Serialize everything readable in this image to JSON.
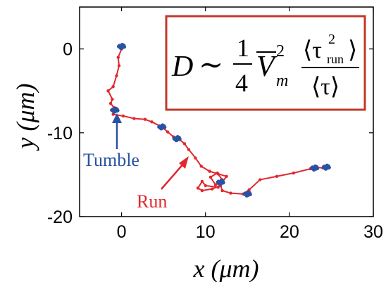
{
  "chart_data": {
    "type": "line",
    "xlabel": "x (μm)",
    "ylabel": "y (μm)",
    "xlim": [
      -5,
      30
    ],
    "ylim": [
      -20,
      5
    ],
    "xticks": [
      0,
      10,
      20,
      30
    ],
    "yticks": [
      0,
      -10,
      -20
    ],
    "grid": false,
    "colors": {
      "run": "#e0282e",
      "tumble": "#2a52a3",
      "equation_box": "#c0392b"
    },
    "series": [
      {
        "name": "Run",
        "role": "trajectory",
        "x": [
          0,
          -0.4,
          -0.3,
          -0.6,
          -1.0,
          -1.6,
          -1.1,
          -1.3,
          -0.9,
          -1.2,
          -0.8,
          -1.0,
          0.2,
          1.5,
          2.8,
          3.6,
          4.8,
          5.5,
          6.2,
          6.9,
          7.5,
          8.0,
          8.8,
          9.5,
          10.5,
          11.5,
          12.5,
          12.0,
          11.2,
          10.6,
          11.4,
          12.0,
          11.5,
          10.0,
          9.6,
          9.1,
          9.6,
          10.8,
          11.8,
          12.0,
          13.0,
          14.5,
          15.2,
          16.5,
          18.5,
          20.5,
          22.5,
          23.0,
          24.0,
          24.5
        ],
        "y": [
          0,
          -1.0,
          -2.0,
          -3.2,
          -4.5,
          -5.0,
          -6.0,
          -6.5,
          -7.0,
          -7.3,
          -7.5,
          -7.8,
          -8.0,
          -8.3,
          -8.4,
          -8.7,
          -9.3,
          -9.9,
          -10.5,
          -10.8,
          -11.3,
          -12.0,
          -13.0,
          -14.0,
          -14.6,
          -14.9,
          -15.2,
          -15.9,
          -16.2,
          -15.3,
          -14.8,
          -15.6,
          -16.5,
          -16.3,
          -15.8,
          -16.6,
          -16.9,
          -16.7,
          -16.3,
          -16.9,
          -17.2,
          -17.3,
          -16.8,
          -15.6,
          -15.2,
          -14.8,
          -14.3,
          -14.1,
          -14.2,
          -14.1
        ]
      },
      {
        "name": "Tumble",
        "role": "tumble_clusters",
        "x": [
          0.0,
          -0.8,
          4.8,
          6.6,
          11.8,
          15.0,
          23.0,
          24.4
        ],
        "y": [
          0.3,
          -7.3,
          -9.3,
          -10.7,
          -15.9,
          -17.3,
          -14.2,
          -14.1
        ]
      }
    ],
    "annotations": [
      {
        "text": "Tumble",
        "color": "#2a52a3"
      },
      {
        "text": "Run",
        "color": "#e0282e"
      }
    ],
    "equation": {
      "lhs": "D",
      "sim": "∼",
      "coef_num": "1",
      "coef_den": "4",
      "V": "V",
      "V_sub": "m",
      "V_sup": "2",
      "num": "⟨τ",
      "num_sup": "2",
      "num_sub": "run",
      "num_close": "⟩",
      "den": "⟨τ⟩"
    }
  }
}
